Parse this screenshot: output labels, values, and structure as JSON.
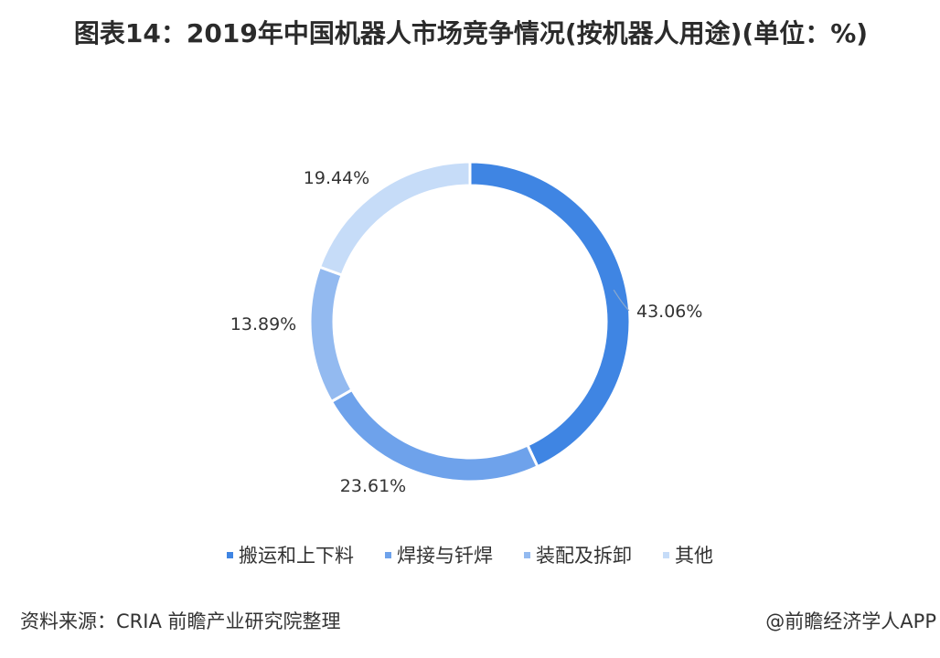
{
  "title": "图表14：2019年中国机器人市场竞争情况(按机器人用途)(单位：%)",
  "chart_data": {
    "type": "pie",
    "subtype": "donut",
    "categories": [
      "搬运和上下料",
      "焊接与钎焊",
      "装配及拆卸",
      "其他"
    ],
    "values": [
      43.06,
      23.61,
      13.89,
      19.44
    ],
    "labels": [
      "43.06%",
      "23.61%",
      "13.89%",
      "19.44%"
    ],
    "colors": [
      "#3f85e3",
      "#6ea2eb",
      "#93baf0",
      "#c6dcf8"
    ],
    "legend_position": "bottom"
  },
  "footer": {
    "source": "资料来源：CRIA 前瞻产业研究院整理",
    "credit": "@前瞻经济学人APP"
  }
}
